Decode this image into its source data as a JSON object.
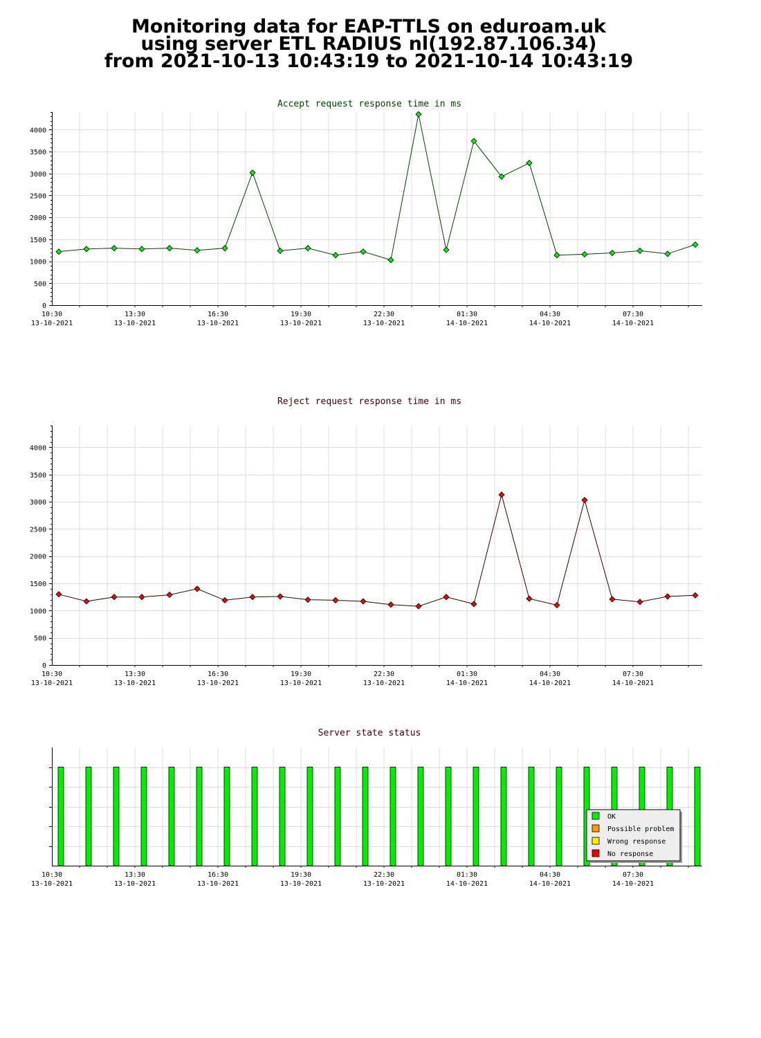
{
  "header": {
    "line1": "Monitoring data for EAP-TTLS on eduroam.uk",
    "line2": "using server ETL RADIUS nl(192.87.106.34)",
    "line3": "from 2021-10-13 10:43:19 to 2021-10-14 10:43:19"
  },
  "colors": {
    "accept_title": "#004400",
    "reject_title": "#440000",
    "status_title": "#440000",
    "accept_marker": "#00ee00",
    "accept_line": "#004400",
    "reject_marker": "#ee0000",
    "reject_line": "#330000",
    "ok": "#00ee00",
    "possible_problem": "#ff9900",
    "wrong_response": "#ffee00",
    "no_response": "#ee0000"
  },
  "chart_data": [
    {
      "type": "line",
      "title": "Accept request response time in ms",
      "x_tick_labels": [
        {
          "time": "10:30",
          "date": "13-10-2021"
        },
        {
          "time": "13:30",
          "date": "13-10-2021"
        },
        {
          "time": "16:30",
          "date": "13-10-2021"
        },
        {
          "time": "19:30",
          "date": "13-10-2021"
        },
        {
          "time": "22:30",
          "date": "13-10-2021"
        },
        {
          "time": "01:30",
          "date": "14-10-2021"
        },
        {
          "time": "04:30",
          "date": "14-10-2021"
        },
        {
          "time": "07:30",
          "date": "14-10-2021"
        }
      ],
      "y_ticks": [
        0,
        500,
        1000,
        1500,
        2000,
        2500,
        3000,
        3500,
        4000
      ],
      "ylim": [
        0,
        4400
      ],
      "grid": true,
      "series": [
        {
          "values": [
            1220,
            1280,
            1300,
            1280,
            1300,
            1250,
            1300,
            3020,
            1240,
            1300,
            1140,
            1220,
            1030,
            4350,
            1260,
            3740,
            2930,
            3240,
            1140,
            1160,
            1190,
            1240,
            1170,
            1380
          ]
        }
      ]
    },
    {
      "type": "line",
      "title": "Reject request response time in ms",
      "x_tick_labels": [
        {
          "time": "10:30",
          "date": "13-10-2021"
        },
        {
          "time": "13:30",
          "date": "13-10-2021"
        },
        {
          "time": "16:30",
          "date": "13-10-2021"
        },
        {
          "time": "19:30",
          "date": "13-10-2021"
        },
        {
          "time": "22:30",
          "date": "13-10-2021"
        },
        {
          "time": "01:30",
          "date": "14-10-2021"
        },
        {
          "time": "04:30",
          "date": "14-10-2021"
        },
        {
          "time": "07:30",
          "date": "14-10-2021"
        }
      ],
      "y_ticks": [
        0,
        500,
        1000,
        1500,
        2000,
        2500,
        3000,
        3500,
        4000
      ],
      "ylim": [
        0,
        4400
      ],
      "grid": true,
      "series": [
        {
          "values": [
            1300,
            1170,
            1250,
            1250,
            1290,
            1400,
            1190,
            1250,
            1260,
            1200,
            1190,
            1170,
            1110,
            1080,
            1250,
            1120,
            3130,
            1220,
            1100,
            3030,
            1210,
            1160,
            1260,
            1280
          ]
        }
      ]
    },
    {
      "type": "bar",
      "title": "Server state status",
      "x_tick_labels": [
        {
          "time": "10:30",
          "date": "13-10-2021"
        },
        {
          "time": "13:30",
          "date": "13-10-2021"
        },
        {
          "time": "16:30",
          "date": "13-10-2021"
        },
        {
          "time": "19:30",
          "date": "13-10-2021"
        },
        {
          "time": "22:30",
          "date": "13-10-2021"
        },
        {
          "time": "01:30",
          "date": "14-10-2021"
        },
        {
          "time": "04:30",
          "date": "14-10-2021"
        },
        {
          "time": "07:30",
          "date": "14-10-2021"
        }
      ],
      "grid": true,
      "states": [
        "OK",
        "OK",
        "OK",
        "OK",
        "OK",
        "OK",
        "OK",
        "OK",
        "OK",
        "OK",
        "OK",
        "OK",
        "OK",
        "OK",
        "OK",
        "OK",
        "OK",
        "OK",
        "OK",
        "OK",
        "OK",
        "OK",
        "OK",
        "OK"
      ],
      "legend": {
        "placement": "bottom-right",
        "items": [
          {
            "label": "OK",
            "color_key": "ok"
          },
          {
            "label": "Possible problem",
            "color_key": "possible_problem"
          },
          {
            "label": "Wrong response",
            "color_key": "wrong_response"
          },
          {
            "label": "No response",
            "color_key": "no_response"
          }
        ]
      }
    }
  ]
}
